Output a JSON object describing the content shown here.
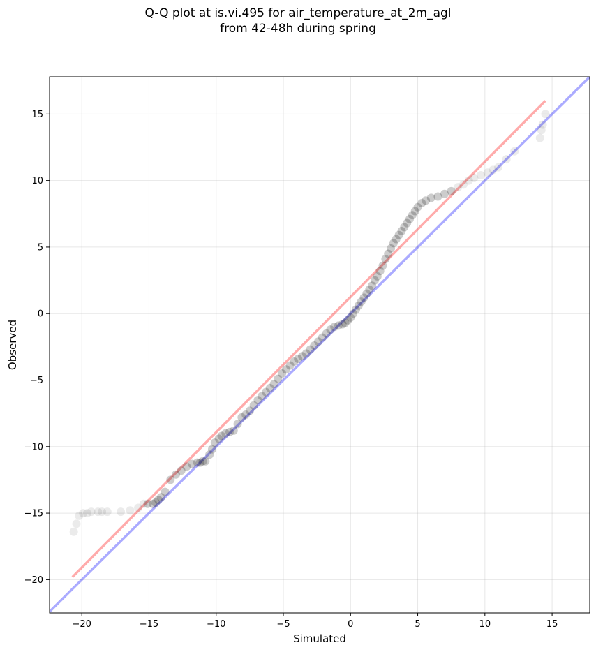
{
  "chart_data": {
    "type": "scatter",
    "title": "Q-Q plot at is.vi.495 for air_temperature_at_2m_agl",
    "subtitle": "from 42-48h during spring",
    "xlabel": "Simulated",
    "ylabel": "Observed",
    "xlim": [
      -22.4,
      17.8
    ],
    "ylim": [
      -22.5,
      17.8
    ],
    "xticks": [
      -20,
      -15,
      -10,
      -5,
      0,
      5,
      10,
      15
    ],
    "yticks": [
      -20,
      -15,
      -10,
      -5,
      0,
      5,
      10,
      15
    ],
    "grid": true,
    "colors": {
      "points": "#000000",
      "identity_line": "#0000ff",
      "fit_line": "#ff0000"
    },
    "identity_line": {
      "x": [
        -22.4,
        17.8
      ],
      "y": [
        -22.4,
        17.8
      ]
    },
    "fit_line": {
      "x": [
        -20.7,
        14.5
      ],
      "y": [
        -19.8,
        16.0
      ]
    },
    "x": [
      -20.6,
      -20.4,
      -20.2,
      -19.9,
      -19.6,
      -19.3,
      -18.8,
      -18.5,
      -18.1,
      -17.1,
      -16.4,
      -15.8,
      -15.4,
      -15.1,
      -14.7,
      -14.5,
      -14.3,
      -14.1,
      -13.8,
      -13.4,
      -13.0,
      -12.6,
      -12.2,
      -11.8,
      -11.4,
      -11.2,
      -11.0,
      -10.8,
      -10.5,
      -10.3,
      -10.1,
      -9.8,
      -9.6,
      -9.3,
      -9.0,
      -8.7,
      -8.4,
      -8.1,
      -7.8,
      -7.5,
      -7.2,
      -6.9,
      -6.6,
      -6.3,
      -6.0,
      -5.7,
      -5.4,
      -5.1,
      -4.8,
      -4.5,
      -4.2,
      -3.9,
      -3.6,
      -3.3,
      -3.0,
      -2.7,
      -2.4,
      -2.1,
      -1.8,
      -1.5,
      -1.2,
      -0.9,
      -0.6,
      -0.4,
      -0.2,
      0.0,
      0.2,
      0.4,
      0.6,
      0.8,
      1.0,
      1.2,
      1.4,
      1.6,
      1.8,
      2.0,
      2.2,
      2.4,
      2.6,
      2.8,
      3.0,
      3.2,
      3.4,
      3.6,
      3.8,
      4.0,
      4.2,
      4.4,
      4.6,
      4.8,
      5.0,
      5.3,
      5.6,
      6.0,
      6.5,
      7.0,
      7.5,
      8.0,
      8.4,
      8.8,
      9.2,
      9.7,
      10.2,
      10.6,
      11.0,
      11.6,
      12.2,
      14.1,
      14.2,
      14.3,
      14.5
    ],
    "y": [
      -16.4,
      -15.8,
      -15.2,
      -15.0,
      -15.0,
      -14.9,
      -14.9,
      -14.9,
      -14.9,
      -14.9,
      -14.8,
      -14.6,
      -14.3,
      -14.3,
      -14.3,
      -14.2,
      -14.0,
      -13.8,
      -13.4,
      -12.5,
      -12.1,
      -11.8,
      -11.5,
      -11.3,
      -11.2,
      -11.2,
      -11.1,
      -11.1,
      -10.6,
      -10.2,
      -9.7,
      -9.4,
      -9.2,
      -9.0,
      -8.9,
      -8.8,
      -8.3,
      -7.8,
      -7.6,
      -7.3,
      -6.9,
      -6.5,
      -6.2,
      -5.9,
      -5.6,
      -5.3,
      -4.9,
      -4.5,
      -4.2,
      -3.9,
      -3.6,
      -3.4,
      -3.2,
      -3.0,
      -2.7,
      -2.4,
      -2.1,
      -1.8,
      -1.5,
      -1.2,
      -1.0,
      -0.9,
      -0.8,
      -0.7,
      -0.5,
      -0.3,
      0.0,
      0.3,
      0.6,
      0.9,
      1.2,
      1.5,
      1.8,
      2.1,
      2.5,
      2.8,
      3.2,
      3.6,
      4.1,
      4.5,
      4.9,
      5.3,
      5.6,
      5.9,
      6.2,
      6.5,
      6.8,
      7.1,
      7.4,
      7.7,
      8.0,
      8.3,
      8.5,
      8.7,
      8.8,
      9.0,
      9.2,
      9.5,
      9.7,
      10.0,
      10.2,
      10.4,
      10.6,
      10.8,
      11.0,
      11.6,
      12.2,
      13.2,
      13.8,
      14.2,
      15.0
    ]
  }
}
